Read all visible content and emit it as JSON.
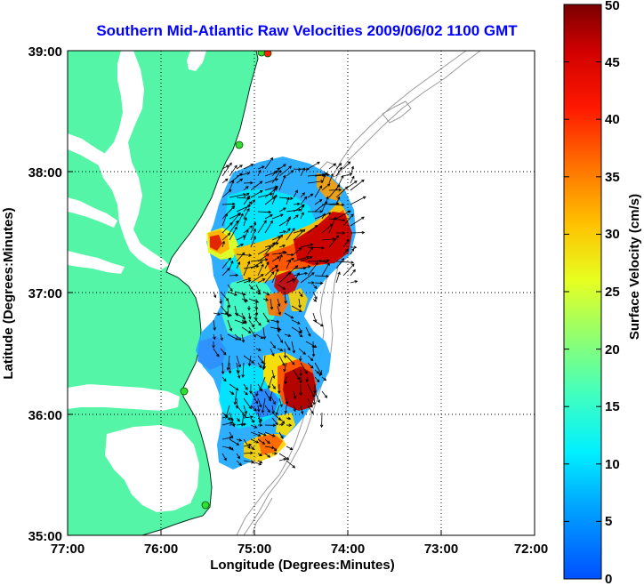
{
  "title": "Southern Mid-Atlantic Raw Velocities 2009/06/02 1100 GMT",
  "xlabel": "Longitude (Degrees:Minutes)",
  "ylabel": "Latitude (Degrees:Minutes)",
  "colorbar_label": "Surface Velocity (cm/s)",
  "x_ticks": [
    "77:00",
    "76:00",
    "75:00",
    "74:00",
    "73:00",
    "72:00"
  ],
  "y_ticks": [
    "39:00",
    "38:00",
    "37:00",
    "36:00",
    "35:00"
  ],
  "colorbar_ticks": [
    "0",
    "5",
    "10",
    "15",
    "20",
    "25",
    "30",
    "35",
    "40",
    "45",
    "50"
  ],
  "colors": {
    "land": "#55f5a8",
    "water": "#ffffff",
    "bathymetry": "#9a9a9a",
    "station_green": "#33dd33",
    "station_red": "#ff2200"
  }
}
